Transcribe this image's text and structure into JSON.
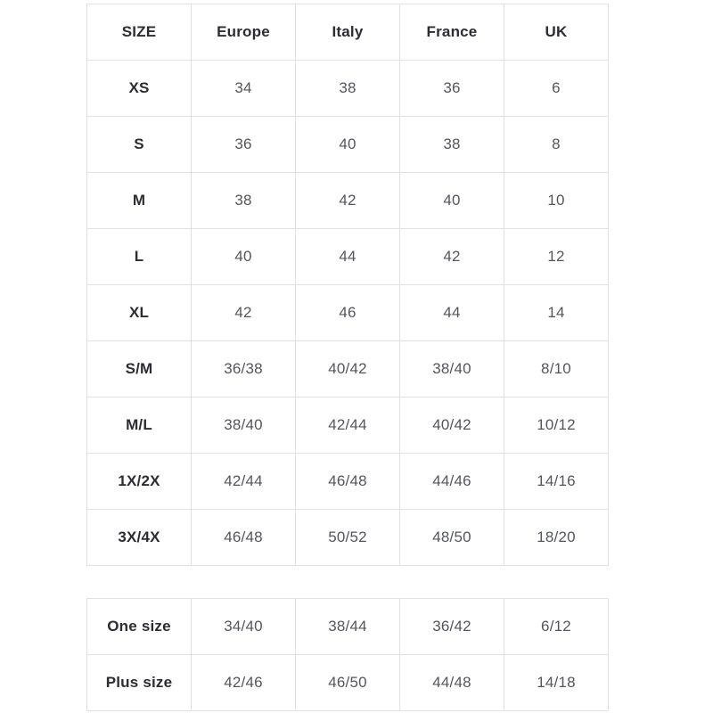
{
  "colors": {
    "border": "#e2e2e2",
    "header_text": "#2c2d33",
    "body_text": "#54565e",
    "background": "#ffffff"
  },
  "main_table": {
    "headers": [
      "SIZE",
      "Europe",
      "Italy",
      "France",
      "UK"
    ],
    "rows": [
      {
        "label": "XS",
        "values": [
          "34",
          "38",
          "36",
          "6"
        ]
      },
      {
        "label": "S",
        "values": [
          "36",
          "40",
          "38",
          "8"
        ]
      },
      {
        "label": "M",
        "values": [
          "38",
          "42",
          "40",
          "10"
        ]
      },
      {
        "label": "L",
        "values": [
          "40",
          "44",
          "42",
          "12"
        ]
      },
      {
        "label": "XL",
        "values": [
          "42",
          "46",
          "44",
          "14"
        ]
      },
      {
        "label": "S/M",
        "values": [
          "36/38",
          "40/42",
          "38/40",
          "8/10"
        ]
      },
      {
        "label": "M/L",
        "values": [
          "38/40",
          "42/44",
          "40/42",
          "10/12"
        ]
      },
      {
        "label": "1X/2X",
        "values": [
          "42/44",
          "46/48",
          "44/46",
          "14/16"
        ]
      },
      {
        "label": "3X/4X",
        "values": [
          "46/48",
          "50/52",
          "48/50",
          "18/20"
        ]
      }
    ]
  },
  "extra_table": {
    "rows": [
      {
        "label": "One size",
        "values": [
          "34/40",
          "38/44",
          "36/42",
          "6/12"
        ]
      },
      {
        "label": "Plus size",
        "values": [
          "42/46",
          "46/50",
          "44/48",
          "14/18"
        ]
      }
    ]
  },
  "chart_data": {
    "type": "table",
    "title": "",
    "columns": [
      "SIZE",
      "Europe",
      "Italy",
      "France",
      "UK"
    ],
    "rows": [
      [
        "XS",
        "34",
        "38",
        "36",
        "6"
      ],
      [
        "S",
        "36",
        "40",
        "38",
        "8"
      ],
      [
        "M",
        "38",
        "42",
        "40",
        "10"
      ],
      [
        "L",
        "40",
        "44",
        "42",
        "12"
      ],
      [
        "XL",
        "42",
        "46",
        "44",
        "14"
      ],
      [
        "S/M",
        "36/38",
        "40/42",
        "38/40",
        "8/10"
      ],
      [
        "M/L",
        "38/40",
        "42/44",
        "40/42",
        "10/12"
      ],
      [
        "1X/2X",
        "42/44",
        "46/48",
        "44/46",
        "14/16"
      ],
      [
        "3X/4X",
        "46/48",
        "50/52",
        "48/50",
        "18/20"
      ]
    ],
    "secondary_rows": [
      [
        "One size",
        "34/40",
        "38/44",
        "36/42",
        "6/12"
      ],
      [
        "Plus size",
        "42/46",
        "46/50",
        "44/48",
        "14/18"
      ]
    ],
    "layout": {
      "grid": true,
      "header_bold": true,
      "first_column_bold": true
    }
  }
}
